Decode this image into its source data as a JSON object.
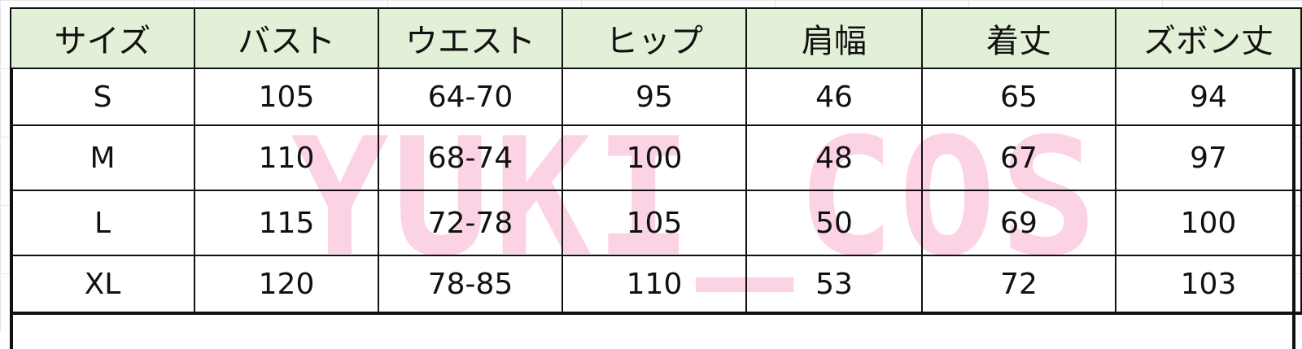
{
  "headers": [
    "サイズ",
    "バスト",
    "ウエスト",
    "ヒップ",
    "肩幅",
    "着丈",
    "ズボン丈"
  ],
  "rows": [
    [
      "S",
      "105",
      "64-70",
      "95",
      "46",
      "65",
      "94"
    ],
    [
      "M",
      "110",
      "68-74",
      "100",
      "48",
      "67",
      "97"
    ],
    [
      "L",
      "115",
      "72-78",
      "105",
      "50",
      "69",
      "100"
    ],
    [
      "XL",
      "120",
      "78-85",
      "110",
      "53",
      "72",
      "103"
    ]
  ],
  "watermark": "YUKI_COS",
  "colors": {
    "header_bg": "#e3f0d8",
    "watermark": "#fcd3e4",
    "border": "#111111"
  }
}
